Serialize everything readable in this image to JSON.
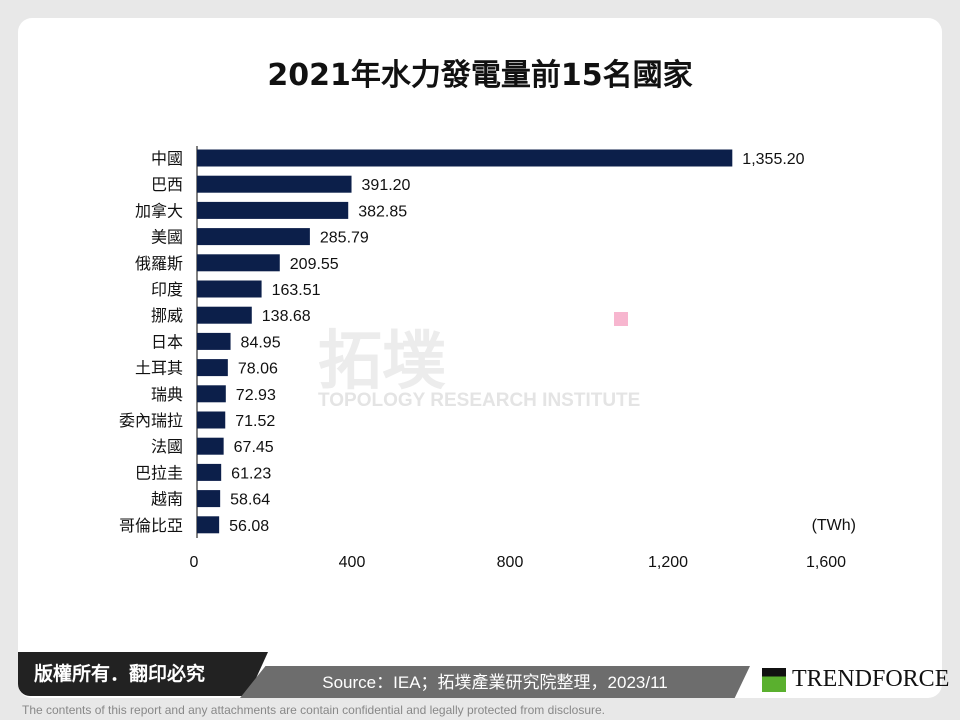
{
  "chart_data": {
    "type": "bar",
    "orientation": "horizontal",
    "title": "2021年水力發電量前15名國家",
    "categories": [
      "中國",
      "巴西",
      "加拿大",
      "美國",
      "俄羅斯",
      "印度",
      "挪威",
      "日本",
      "土耳其",
      "瑞典",
      "委內瑞拉",
      "法國",
      "巴拉圭",
      "越南",
      "哥倫比亞"
    ],
    "values": [
      1355.2,
      391.2,
      382.85,
      285.79,
      209.55,
      163.51,
      138.68,
      84.95,
      78.06,
      72.93,
      71.52,
      67.45,
      61.23,
      58.64,
      56.08
    ],
    "value_labels": [
      "1,355.20",
      "391.20",
      "382.85",
      "285.79",
      "209.55",
      "163.51",
      "138.68",
      "84.95",
      "78.06",
      "72.93",
      "71.52",
      "67.45",
      "61.23",
      "58.64",
      "56.08"
    ],
    "unit": "(TWh)",
    "xlim": [
      0,
      1600
    ],
    "xticks": [
      0,
      400,
      800,
      1200,
      1600
    ],
    "xtick_labels": [
      "0",
      "400",
      "800",
      "1,200",
      "1,600"
    ],
    "bar_color": "#0c1f4a",
    "grid": false
  },
  "watermark": {
    "cn": "拓墣",
    "en": "TOPOLOGY RESEARCH INSTITUTE"
  },
  "footer": {
    "copyright": "版權所有．翻印必究",
    "source": "Source：IEA；拓墣產業研究院整理，2023/11",
    "logo": "TRENDFORCE",
    "disclaimer": "The contents of this report and any attachments are contain confidential and legally protected from disclosure."
  }
}
